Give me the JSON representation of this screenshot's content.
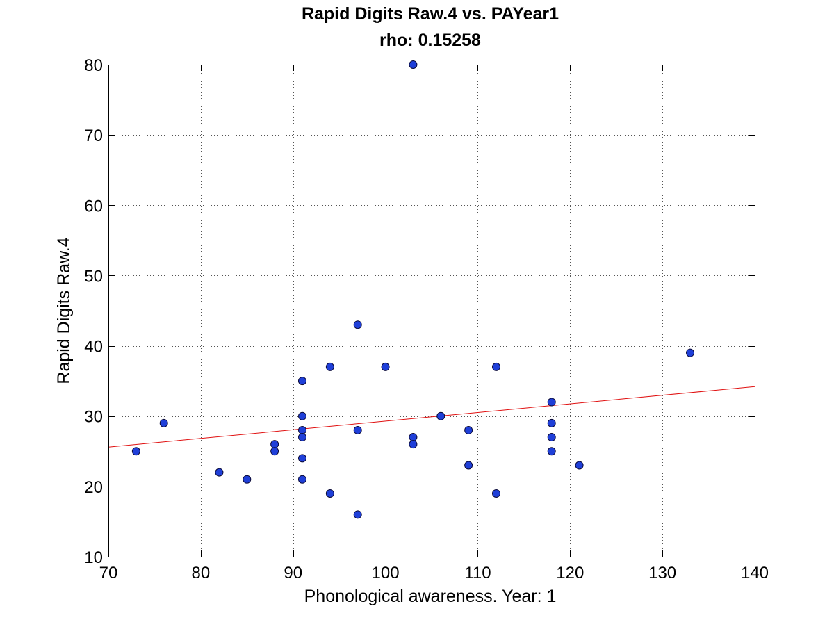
{
  "chart_data": {
    "type": "scatter",
    "title": "Rapid Digits Raw.4 vs. PAYear1",
    "subtitle": "rho: 0.15258",
    "xlabel": "Phonological awareness. Year: 1",
    "ylabel": "Rapid Digits Raw.4",
    "xlim": [
      70,
      140
    ],
    "ylim": [
      10,
      80
    ],
    "xticks": [
      70,
      80,
      90,
      100,
      110,
      120,
      130,
      140
    ],
    "yticks": [
      10,
      20,
      30,
      40,
      50,
      60,
      70,
      80
    ],
    "grid": true,
    "legend": "none",
    "colors": {
      "marker_fill": "#1f3fd8",
      "marker_edge": "#0a0a3a",
      "fit_line": "#e01010",
      "grid": "#555555",
      "axes": "#000000"
    },
    "series": [
      {
        "points": [
          [
            73,
            25
          ],
          [
            76,
            29
          ],
          [
            82,
            22
          ],
          [
            85,
            21
          ],
          [
            88,
            26
          ],
          [
            88,
            25
          ],
          [
            91,
            35
          ],
          [
            91,
            30
          ],
          [
            91,
            28
          ],
          [
            91,
            27
          ],
          [
            91,
            24
          ],
          [
            91,
            21
          ],
          [
            94,
            37
          ],
          [
            94,
            19
          ],
          [
            97,
            43
          ],
          [
            97,
            28
          ],
          [
            97,
            16
          ],
          [
            100,
            37
          ],
          [
            103,
            80
          ],
          [
            103,
            27
          ],
          [
            103,
            26
          ],
          [
            106,
            30
          ],
          [
            109,
            28
          ],
          [
            109,
            23
          ],
          [
            112,
            37
          ],
          [
            112,
            19
          ],
          [
            118,
            32
          ],
          [
            118,
            29
          ],
          [
            118,
            27
          ],
          [
            118,
            25
          ],
          [
            121,
            23
          ],
          [
            133,
            39
          ]
        ]
      }
    ],
    "fit_line": {
      "x": [
        70,
        140
      ],
      "y": [
        25.6,
        34.2
      ]
    }
  }
}
